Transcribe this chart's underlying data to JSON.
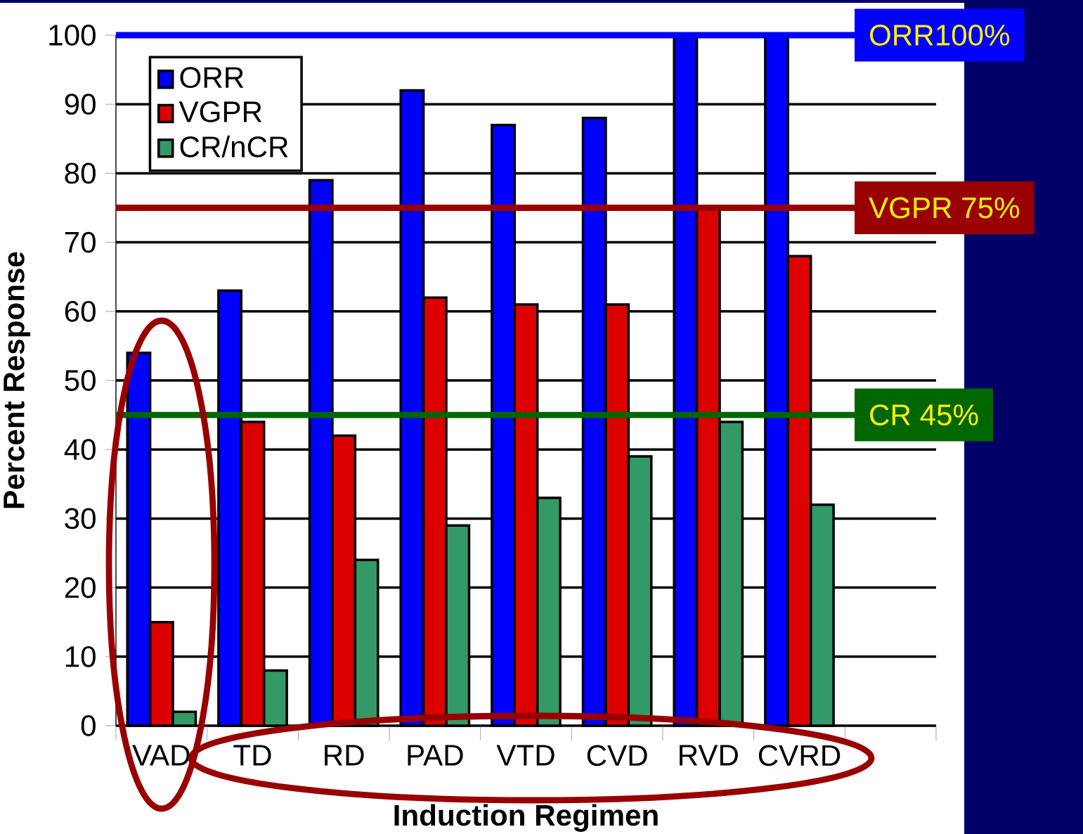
{
  "chart_data": {
    "type": "bar",
    "xlabel": "Induction Regimen",
    "ylabel": "Percent Response",
    "categories": [
      "VAD",
      "TD",
      "RD",
      "PAD",
      "VTD",
      "CVD",
      "RVD",
      "CVRD"
    ],
    "series": [
      {
        "name": "ORR",
        "color": "#0000ff",
        "values": [
          54,
          63,
          79,
          92,
          87,
          88,
          100,
          100
        ]
      },
      {
        "name": "VGPR",
        "color": "#dd0000",
        "values": [
          15,
          44,
          42,
          62,
          61,
          61,
          75,
          68
        ]
      },
      {
        "name": "CR/nCR",
        "color": "#339966",
        "values": [
          2,
          8,
          24,
          29,
          33,
          39,
          44,
          32
        ]
      }
    ],
    "ylim": [
      0,
      100
    ],
    "yticks": [
      0,
      10,
      20,
      30,
      40,
      50,
      60,
      70,
      80,
      90,
      100
    ],
    "grid": "y",
    "legend": "top left",
    "ref_lines": [
      {
        "axis": "y",
        "value": 100,
        "label": "ORR100%",
        "color": "#0000ff"
      },
      {
        "axis": "y",
        "value": 75,
        "label": "VGPR 75%",
        "color": "#990000"
      },
      {
        "axis": "y",
        "value": 45,
        "label": "CR 45%",
        "color": "#006600"
      }
    ]
  }
}
